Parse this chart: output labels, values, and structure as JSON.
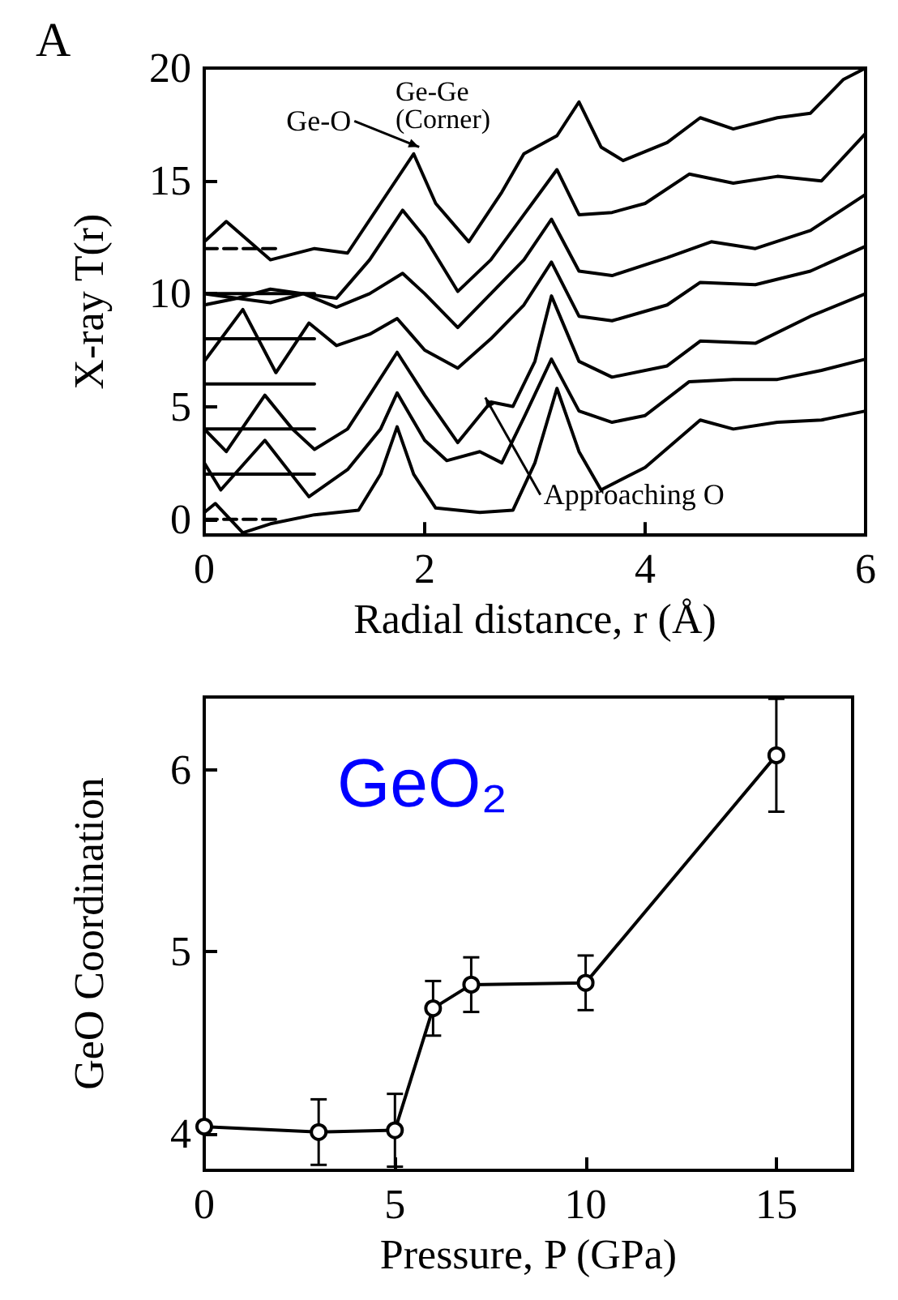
{
  "chart_data": [
    {
      "type": "line",
      "xlabel": "Radial distance, r (Å)",
      "ylabel": "X-ray T(r)",
      "xlim": [
        0,
        6
      ],
      "xticks": [
        0,
        2,
        4,
        6
      ],
      "ylim": [
        -0.7,
        20
      ],
      "yticks": [
        0,
        5,
        10,
        15,
        20
      ],
      "marker": "none",
      "line_style": "solid",
      "annotations": [
        "A",
        {
          "text": "Ge-O",
          "x": 1.95,
          "y": 16.5
        },
        "Ge-Ge (Corner)",
        {
          "text": "Approaching O",
          "x": 2.55,
          "y": 5.4
        }
      ],
      "series": [
        {
          "color": "#000000",
          "x": [
            0,
            0.1,
            0.35,
            0.6,
            1.0,
            1.4,
            1.6,
            1.75,
            1.9,
            2.1,
            2.5,
            2.8,
            3.0,
            3.2,
            3.4,
            3.6,
            4.0,
            4.5,
            4.8,
            5.2,
            5.6,
            6.0
          ],
          "values": [
            0.3,
            0.7,
            -0.6,
            -0.2,
            0.2,
            0.4,
            2.0,
            4.1,
            2.0,
            0.5,
            0.3,
            0.4,
            2.5,
            5.8,
            3.0,
            1.3,
            2.3,
            4.4,
            4.0,
            4.3,
            4.4,
            4.8
          ]
        },
        {
          "color": "#000000",
          "x": [
            0,
            0.15,
            0.55,
            0.95,
            1.3,
            1.6,
            1.75,
            2.0,
            2.2,
            2.5,
            2.7,
            2.9,
            3.15,
            3.4,
            3.7,
            4.0,
            4.4,
            4.8,
            5.2,
            5.6,
            6.0
          ],
          "values": [
            2.5,
            1.3,
            3.5,
            1.0,
            2.2,
            4.0,
            5.6,
            3.5,
            2.6,
            3.0,
            2.5,
            4.5,
            7.1,
            4.8,
            4.3,
            4.6,
            6.1,
            6.2,
            6.2,
            6.6,
            7.1
          ]
        },
        {
          "color": "#000000",
          "x": [
            0,
            0.2,
            0.55,
            0.8,
            1.0,
            1.3,
            1.5,
            1.75,
            2.0,
            2.3,
            2.6,
            2.8,
            3.0,
            3.15,
            3.4,
            3.7,
            4.2,
            4.5,
            5.0,
            5.5,
            6.0
          ],
          "values": [
            4.0,
            3.0,
            5.5,
            4.0,
            3.1,
            4.0,
            5.5,
            7.4,
            5.5,
            3.4,
            5.2,
            5.0,
            7.0,
            9.9,
            7.0,
            6.3,
            6.8,
            7.9,
            7.8,
            9.0,
            10.0
          ]
        },
        {
          "color": "#000000",
          "x": [
            0,
            0.35,
            0.65,
            0.95,
            1.2,
            1.5,
            1.75,
            2.0,
            2.3,
            2.6,
            2.9,
            3.15,
            3.4,
            3.7,
            4.2,
            4.5,
            5.0,
            5.5,
            6.0
          ],
          "values": [
            7.0,
            9.3,
            6.5,
            8.7,
            7.7,
            8.2,
            8.9,
            7.5,
            6.7,
            8.0,
            9.5,
            11.4,
            9.0,
            8.8,
            9.5,
            10.5,
            10.4,
            11.0,
            12.1
          ]
        },
        {
          "color": "#000000",
          "x": [
            0,
            0.3,
            0.6,
            0.9,
            1.2,
            1.5,
            1.8,
            2.0,
            2.3,
            2.6,
            2.9,
            3.15,
            3.4,
            3.7,
            4.2,
            4.6,
            5.0,
            5.5,
            6.0
          ],
          "values": [
            9.5,
            9.8,
            9.6,
            10.0,
            9.4,
            10.0,
            10.9,
            10.0,
            8.5,
            10.0,
            11.5,
            13.3,
            11.0,
            10.8,
            11.6,
            12.3,
            12.0,
            12.8,
            14.4
          ]
        },
        {
          "color": "#000000",
          "x": [
            0,
            0.3,
            0.6,
            0.9,
            1.2,
            1.5,
            1.8,
            2.0,
            2.3,
            2.6,
            2.9,
            3.2,
            3.4,
            3.7,
            4.0,
            4.4,
            4.8,
            5.2,
            5.6,
            6.0
          ],
          "values": [
            10.0,
            9.8,
            10.2,
            10.0,
            9.8,
            11.5,
            13.7,
            12.5,
            10.1,
            11.5,
            13.5,
            15.5,
            13.5,
            13.6,
            14.0,
            15.3,
            14.9,
            15.2,
            15.0,
            17.1
          ]
        },
        {
          "color": "#000000",
          "x": [
            0,
            0.2,
            0.6,
            1.0,
            1.3,
            1.6,
            1.9,
            2.1,
            2.4,
            2.7,
            2.9,
            3.2,
            3.4,
            3.6,
            3.8,
            4.2,
            4.5,
            4.8,
            5.2,
            5.5,
            5.8,
            6.0
          ],
          "values": [
            12.3,
            13.2,
            11.5,
            12.0,
            11.8,
            14.0,
            16.2,
            14.0,
            12.3,
            14.5,
            16.2,
            17.0,
            18.5,
            16.5,
            15.9,
            16.7,
            17.8,
            17.3,
            17.8,
            18.0,
            19.5,
            20.0
          ]
        },
        {
          "color": "#000000",
          "x": [
            0,
            1
          ],
          "values": [
            2,
            2
          ]
        },
        {
          "color": "#000000",
          "x": [
            0,
            1
          ],
          "values": [
            4,
            4
          ]
        },
        {
          "color": "#000000",
          "x": [
            0,
            1
          ],
          "values": [
            6,
            6
          ]
        },
        {
          "color": "#000000",
          "x": [
            0,
            1
          ],
          "values": [
            8,
            8
          ]
        },
        {
          "color": "#000000",
          "x": [
            0,
            1
          ],
          "values": [
            10,
            10
          ]
        },
        {
          "color": "#000000",
          "x": [
            0,
            0.7
          ],
          "values": [
            12,
            12
          ],
          "line_style": "dashed"
        },
        {
          "color": "#000000",
          "x": [
            0,
            0.7
          ],
          "values": [
            0,
            0
          ],
          "line_style": "dashed"
        }
      ]
    },
    {
      "type": "line",
      "xlabel": "Pressure, P (GPa)",
      "ylabel": "GeO Coordination",
      "xlim": [
        0,
        17
      ],
      "xticks": [
        0,
        5,
        10,
        15
      ],
      "ylim": [
        3.8,
        6.4
      ],
      "yticks": [
        4,
        5,
        6
      ],
      "marker": "circle",
      "annotations": [
        "GeO₂"
      ],
      "x": [
        0,
        3,
        5,
        6,
        7,
        10,
        15
      ],
      "series": [
        {
          "color": "#000000",
          "values": [
            4.04,
            4.01,
            4.02,
            4.69,
            4.82,
            4.83,
            6.08
          ],
          "errors": [
            null,
            0.18,
            0.2,
            0.15,
            0.15,
            0.15,
            0.31
          ]
        }
      ]
    }
  ]
}
